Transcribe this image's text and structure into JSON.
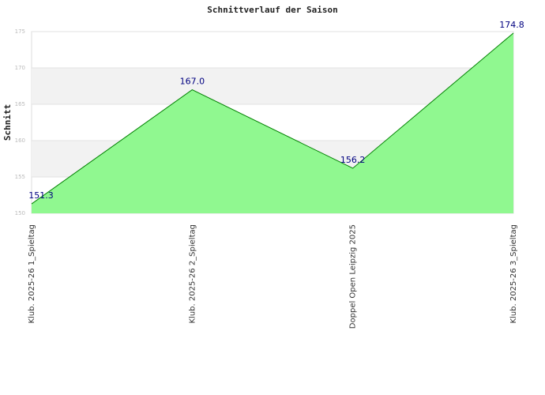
{
  "chart_data": {
    "type": "area",
    "title": "Schnittverlauf der Saison",
    "y_label": "Schnitt",
    "categories": [
      "Klub. 2025-26  1_Spieltag",
      "Klub. 2025-26  2_Spieltag",
      "Doppel Open Leipzig 2025",
      "Klub. 2025-26  3_Spieltag"
    ],
    "values": [
      151.3,
      167.0,
      156.2,
      174.8
    ],
    "value_labels": [
      "151.3",
      "167.0",
      "156.2",
      "174.8"
    ],
    "color": "#008000",
    "fill_color": "#90f890",
    "ylim": [
      150,
      175
    ],
    "yticks": [
      150,
      155,
      160,
      165,
      170,
      175
    ],
    "grid": true
  }
}
